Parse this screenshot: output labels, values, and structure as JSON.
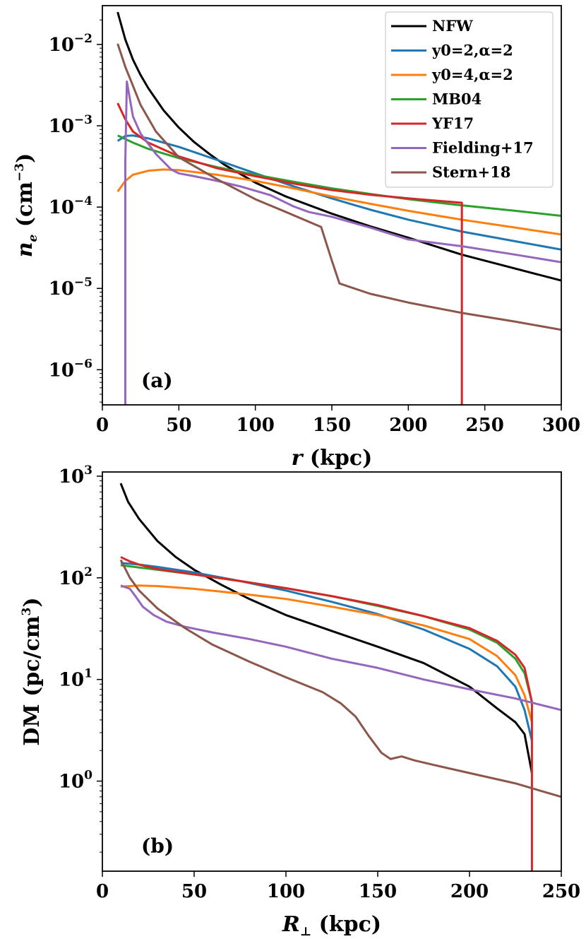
{
  "figure": {
    "title": ""
  },
  "chart_data": [
    {
      "type": "line",
      "panel_label": "(a)",
      "xscale": "linear",
      "yscale": "log",
      "xlabel_var": "r",
      "xlabel_unit": "(kpc)",
      "ylabel_var": "n",
      "ylabel_sub": "e",
      "ylabel_unit": "(cm",
      "ylabel_unit_exp": "−3",
      "ylabel_unit_close": ")",
      "xlim": [
        0,
        300
      ],
      "ylim": [
        3.7e-07,
        0.03
      ],
      "xticks": [
        0,
        50,
        100,
        150,
        200,
        250,
        300
      ],
      "yticks": [
        {
          "value": 1e-06,
          "base": "10",
          "exp": "−6"
        },
        {
          "value": 1e-05,
          "base": "10",
          "exp": "−5"
        },
        {
          "value": 0.0001,
          "base": "10",
          "exp": "−4"
        },
        {
          "value": 0.001,
          "base": "10",
          "exp": "−3"
        },
        {
          "value": 0.01,
          "base": "10",
          "exp": "−2"
        }
      ],
      "legend": {
        "placement": "top-right"
      },
      "series": [
        {
          "name": "NFW",
          "color": "#000000",
          "x": [
            10,
            15,
            20,
            25,
            30,
            40,
            50,
            60,
            70,
            80,
            100,
            120,
            150,
            175,
            200,
            235,
            270,
            300
          ],
          "y": [
            0.025,
            0.0115,
            0.0065,
            0.0042,
            0.0029,
            0.00155,
            0.00095,
            0.00063,
            0.00045,
            0.00033,
            0.0002,
            0.000135,
            8.3e-05,
            5.8e-05,
            4.2e-05,
            2.6e-05,
            1.75e-05,
            1.25e-05
          ]
        },
        {
          "name": "y0=2,α=2",
          "color": "#1f77b4",
          "x": [
            10,
            15,
            20,
            30,
            50,
            75,
            100,
            125,
            150,
            175,
            200,
            235,
            270,
            300
          ],
          "y": [
            0.00065,
            0.00075,
            0.00076,
            0.0007,
            0.00055,
            0.00038,
            0.00026,
            0.00018,
            0.000128,
            9.3e-05,
            7e-05,
            5e-05,
            3.8e-05,
            3e-05
          ]
        },
        {
          "name": "y0=4,α=2",
          "color": "#ff7f0e",
          "x": [
            10,
            15,
            20,
            30,
            40,
            50,
            75,
            100,
            125,
            150,
            175,
            200,
            235,
            270,
            300
          ],
          "y": [
            0.000155,
            0.00021,
            0.00025,
            0.00028,
            0.00029,
            0.000285,
            0.00025,
            0.00021,
            0.00017,
            0.000135,
            0.00011,
            9e-05,
            7e-05,
            5.6e-05,
            4.6e-05
          ]
        },
        {
          "name": "MB04",
          "color": "#2ca02c",
          "x": [
            10,
            20,
            30,
            50,
            75,
            100,
            125,
            150,
            175,
            200,
            235,
            270,
            300
          ],
          "y": [
            0.00076,
            0.00062,
            0.00052,
            0.0004,
            0.00031,
            0.00025,
            0.000205,
            0.00017,
            0.000145,
            0.000125,
            0.000105,
            9e-05,
            7.8e-05
          ]
        },
        {
          "name": "YF17",
          "color": "#d62728",
          "x": [
            10,
            15,
            20,
            30,
            50,
            75,
            100,
            125,
            150,
            175,
            200,
            235,
            235,
            235
          ],
          "y": [
            0.0019,
            0.0012,
            0.00085,
            0.00062,
            0.00042,
            0.0003,
            0.00024,
            0.000195,
            0.000162,
            0.000142,
            0.000128,
            0.000113,
            1e-06,
            3.7e-07
          ]
        },
        {
          "name": "Fielding+17",
          "color": "#9467bd",
          "x": [
            15,
            15,
            16,
            20,
            25,
            35,
            45,
            50,
            60,
            75,
            90,
            110,
            125,
            135,
            150,
            175,
            200,
            235,
            270,
            300
          ],
          "y": [
            3.7e-07,
            0.00037,
            0.0035,
            0.0013,
            0.0008,
            0.00045,
            0.00029,
            0.00026,
            0.00024,
            0.00021,
            0.00018,
            0.00014,
            0.000102,
            8.7e-05,
            7.6e-05,
            5.6e-05,
            4e-05,
            3.3e-05,
            2.6e-05,
            2.1e-05
          ]
        },
        {
          "name": "Stern+18",
          "color": "#8c564b",
          "x": [
            10,
            15,
            20,
            25,
            35,
            50,
            75,
            100,
            120,
            143,
            150,
            155,
            175,
            200,
            235,
            270,
            300
          ],
          "y": [
            0.0102,
            0.0053,
            0.0031,
            0.0018,
            0.00085,
            0.00041,
            0.00022,
            0.000125,
            8.7e-05,
            5.7e-05,
            2.2e-05,
            1.15e-05,
            8.6e-06,
            6.7e-06,
            5e-06,
            3.9e-06,
            3.1e-06
          ]
        }
      ]
    },
    {
      "type": "line",
      "panel_label": "(b)",
      "xscale": "linear",
      "yscale": "log",
      "xlabel_var": "R",
      "xlabel_sub": "⊥",
      "xlabel_unit": "(kpc)",
      "ylabel_text": "DM (pc/cm",
      "ylabel_exp": "3",
      "ylabel_close": ")",
      "xlim": [
        0,
        250
      ],
      "ylim": [
        0.13,
        1100
      ],
      "xticks": [
        0,
        50,
        100,
        150,
        200,
        250
      ],
      "yticks": [
        {
          "value": 1,
          "base": "10",
          "exp": "0"
        },
        {
          "value": 10,
          "base": "10",
          "exp": "1"
        },
        {
          "value": 100,
          "base": "10",
          "exp": "2"
        },
        {
          "value": 1000,
          "base": "10",
          "exp": "3"
        }
      ],
      "series": [
        {
          "name": "NFW",
          "color": "#000000",
          "x": [
            10,
            14,
            20,
            30,
            40,
            50,
            65,
            80,
            100,
            125,
            150,
            175,
            200,
            215,
            225,
            230,
            234
          ],
          "y": [
            850,
            560,
            380,
            230,
            160,
            120,
            85,
            62,
            43,
            30,
            21,
            14.5,
            8.5,
            5.2,
            3.8,
            2.9,
            1.2
          ]
        },
        {
          "name": "y0=2,α=2",
          "color": "#1f77b4",
          "x": [
            10,
            20,
            30,
            50,
            75,
            100,
            125,
            150,
            175,
            200,
            215,
            225,
            230,
            234
          ],
          "y": [
            140,
            135,
            128,
            113,
            93,
            75,
            58,
            44,
            31,
            20,
            13.5,
            8.5,
            5,
            2.5
          ]
        },
        {
          "name": "y0=4,α=2",
          "color": "#ff7f0e",
          "x": [
            10,
            20,
            30,
            50,
            75,
            100,
            125,
            150,
            175,
            200,
            215,
            225,
            230,
            234
          ],
          "y": [
            82,
            84,
            83,
            78,
            70,
            62,
            52,
            43,
            34,
            25,
            17,
            11,
            7,
            3.8
          ]
        },
        {
          "name": "MB04",
          "color": "#2ca02c",
          "x": [
            10,
            30,
            50,
            75,
            100,
            125,
            150,
            175,
            200,
            215,
            225,
            230,
            234
          ],
          "y": [
            133,
            120,
            108,
            93,
            79,
            66,
            53,
            42,
            31,
            23,
            16,
            11.5,
            6
          ]
        },
        {
          "name": "YF17",
          "color": "#d62728",
          "x": [
            10,
            15,
            20,
            30,
            50,
            75,
            100,
            125,
            150,
            175,
            200,
            215,
            225,
            230,
            234,
            234
          ],
          "y": [
            160,
            145,
            135,
            122,
            108,
            93,
            79,
            66,
            54,
            42,
            32,
            24,
            17.5,
            13,
            6,
            0.13
          ]
        },
        {
          "name": "Fielding+17",
          "color": "#9467bd",
          "x": [
            10,
            15,
            18,
            22,
            28,
            35,
            45,
            60,
            80,
            100,
            125,
            150,
            175,
            200,
            225,
            250
          ],
          "y": [
            84,
            78,
            66,
            52,
            43,
            37,
            33,
            29,
            25,
            21,
            16,
            13,
            10,
            8,
            6.5,
            5
          ]
        },
        {
          "name": "Stern+18",
          "color": "#8c564b",
          "x": [
            10,
            15,
            20,
            30,
            45,
            60,
            80,
            100,
            120,
            130,
            138,
            145,
            152,
            157,
            163,
            170,
            180,
            200,
            225,
            250
          ],
          "y": [
            150,
            100,
            75,
            50,
            32,
            22,
            15,
            10.5,
            7.5,
            5.8,
            4.3,
            2.8,
            1.9,
            1.65,
            1.75,
            1.6,
            1.45,
            1.2,
            0.95,
            0.7
          ]
        }
      ]
    }
  ]
}
